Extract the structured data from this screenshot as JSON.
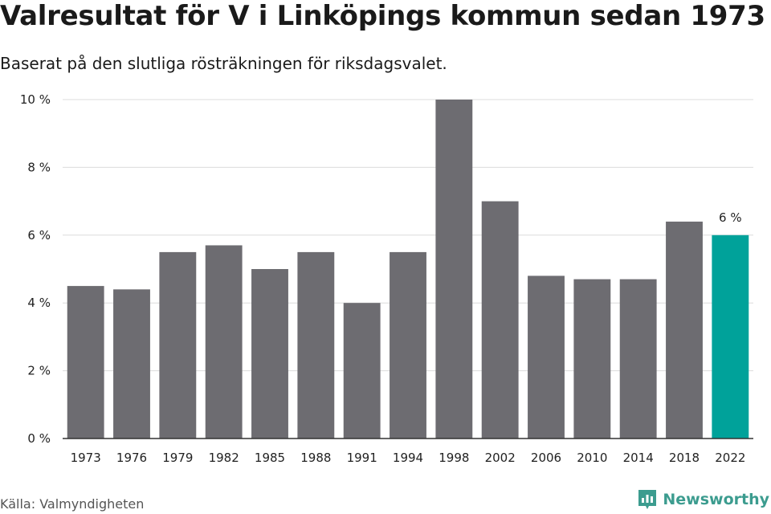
{
  "title": "Valresultat för V i Linköpings kommun sedan 1973",
  "subtitle": "Baserat på den slutliga rösträkningen för riksdagsvalet.",
  "source": "Källa: Valmyndigheten",
  "brand": {
    "name": "Newsworthy",
    "icon": "newsworthy-logo-icon",
    "color": "#3c9c8f"
  },
  "colors": {
    "bar": "#6d6c71",
    "highlight": "#00a29a",
    "grid": "#dcdcdc",
    "axis": "#333333"
  },
  "chart_data": {
    "type": "bar",
    "title": "Valresultat för V i Linköpings kommun sedan 1973",
    "subtitle": "Baserat på den slutliga rösträkningen för riksdagsvalet.",
    "categories": [
      "1973",
      "1976",
      "1979",
      "1982",
      "1985",
      "1988",
      "1991",
      "1994",
      "1998",
      "2002",
      "2006",
      "2010",
      "2014",
      "2018",
      "2022"
    ],
    "values": [
      4.5,
      4.4,
      5.5,
      5.7,
      5.0,
      5.5,
      4.0,
      5.5,
      10.0,
      7.0,
      4.8,
      4.7,
      4.7,
      6.4,
      6.0
    ],
    "unit": "%",
    "ylim": [
      0,
      10
    ],
    "yticks": [
      0,
      2,
      4,
      6,
      8,
      10
    ],
    "ytick_labels": [
      "0 %",
      "2 %",
      "4 %",
      "6 %",
      "8 %",
      "10 %"
    ],
    "highlight_index": 14,
    "data_labels": [
      {
        "index": 14,
        "text": "6 %"
      }
    ],
    "grid": "horizontal",
    "legend": "none"
  }
}
